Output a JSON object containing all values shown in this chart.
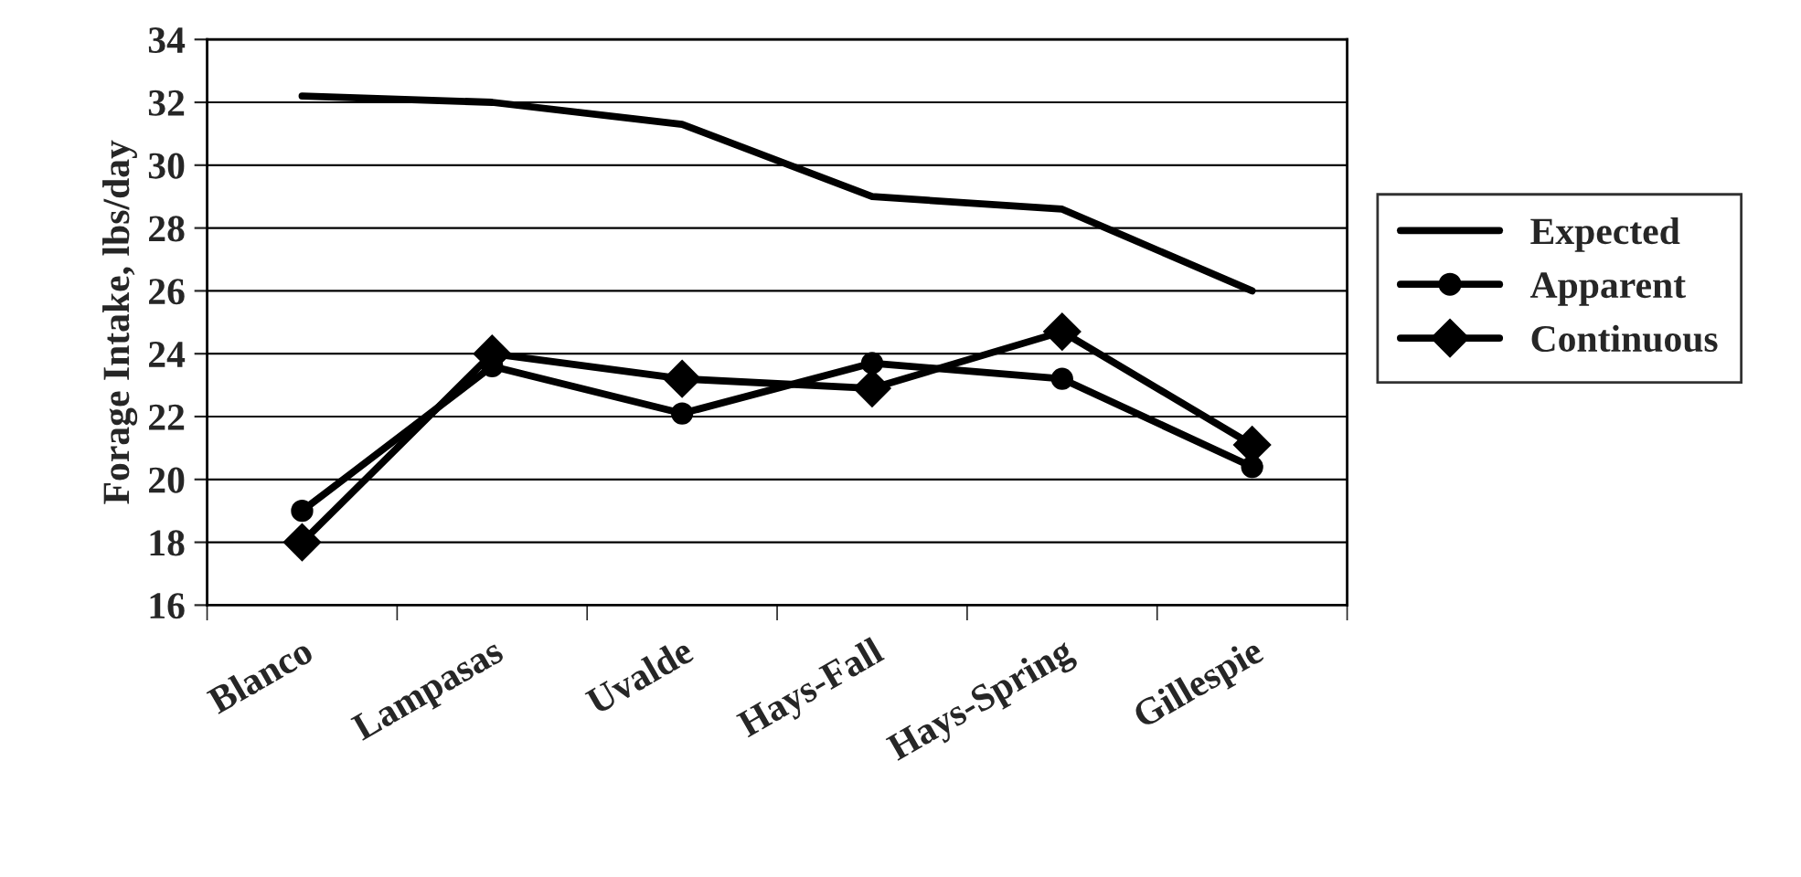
{
  "chart_data": {
    "type": "line",
    "ylabel": "Forage Intake, lbs/day",
    "categories": [
      "Blanco",
      "Lampasas",
      "Uvalde",
      "Hays-Fall",
      "Hays-Spring",
      "Gillespie"
    ],
    "series": [
      {
        "name": "Expected",
        "color": "#000000",
        "marker": "none",
        "values": [
          32.2,
          32.0,
          31.3,
          29.0,
          28.6,
          26.0
        ]
      },
      {
        "name": "Apparent",
        "color": "#000000",
        "marker": "circle",
        "values": [
          19.0,
          23.6,
          22.1,
          23.7,
          23.2,
          20.4
        ]
      },
      {
        "name": "Continuous",
        "color": "#000000",
        "marker": "diamond",
        "values": [
          18.0,
          24.0,
          23.2,
          22.9,
          24.7,
          21.1
        ]
      }
    ],
    "ylim": [
      16,
      34
    ],
    "yticks": [
      16,
      18,
      20,
      22,
      24,
      26,
      28,
      30,
      32,
      34
    ],
    "grid": "y",
    "legend": "right",
    "line_style": "solid"
  }
}
